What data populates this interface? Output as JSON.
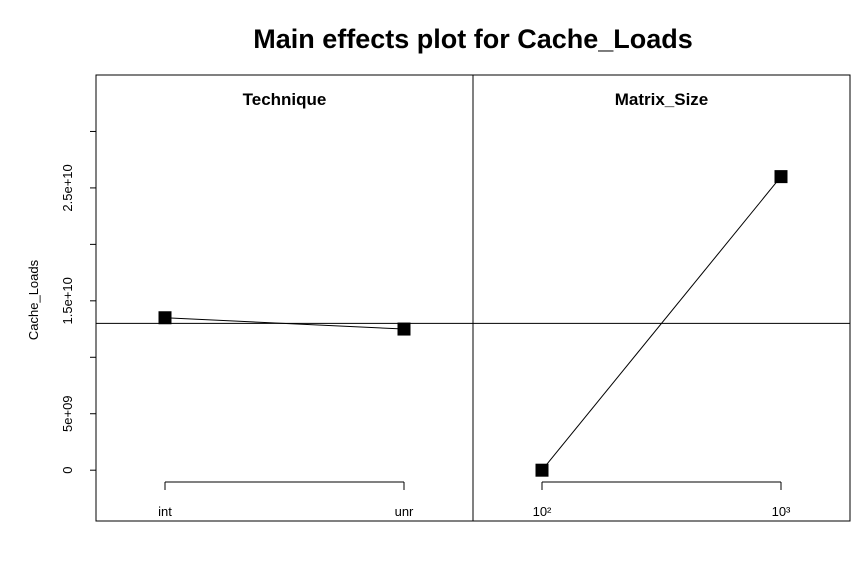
{
  "chart_data": {
    "type": "line",
    "title": "Main effects plot for Cache_Loads",
    "ylabel": "Cache_Loads",
    "ylim": [
      -4500000000.0,
      35000000000.0
    ],
    "y_ticks": [
      0,
      5000000000.0,
      15000000000.0,
      25000000000.0
    ],
    "y_tick_labels": [
      "0",
      "5e+09",
      "1.5e+10",
      "2.5e+10"
    ],
    "grand_mean": 13000000000.0,
    "panels": [
      {
        "name": "Technique",
        "categories": [
          "int",
          "unr"
        ],
        "values": [
          13500000000.0,
          12500000000.0
        ]
      },
      {
        "name": "Matrix_Size",
        "categories": [
          "10²",
          "10³"
        ],
        "values": [
          0,
          26000000000.0
        ]
      }
    ]
  }
}
